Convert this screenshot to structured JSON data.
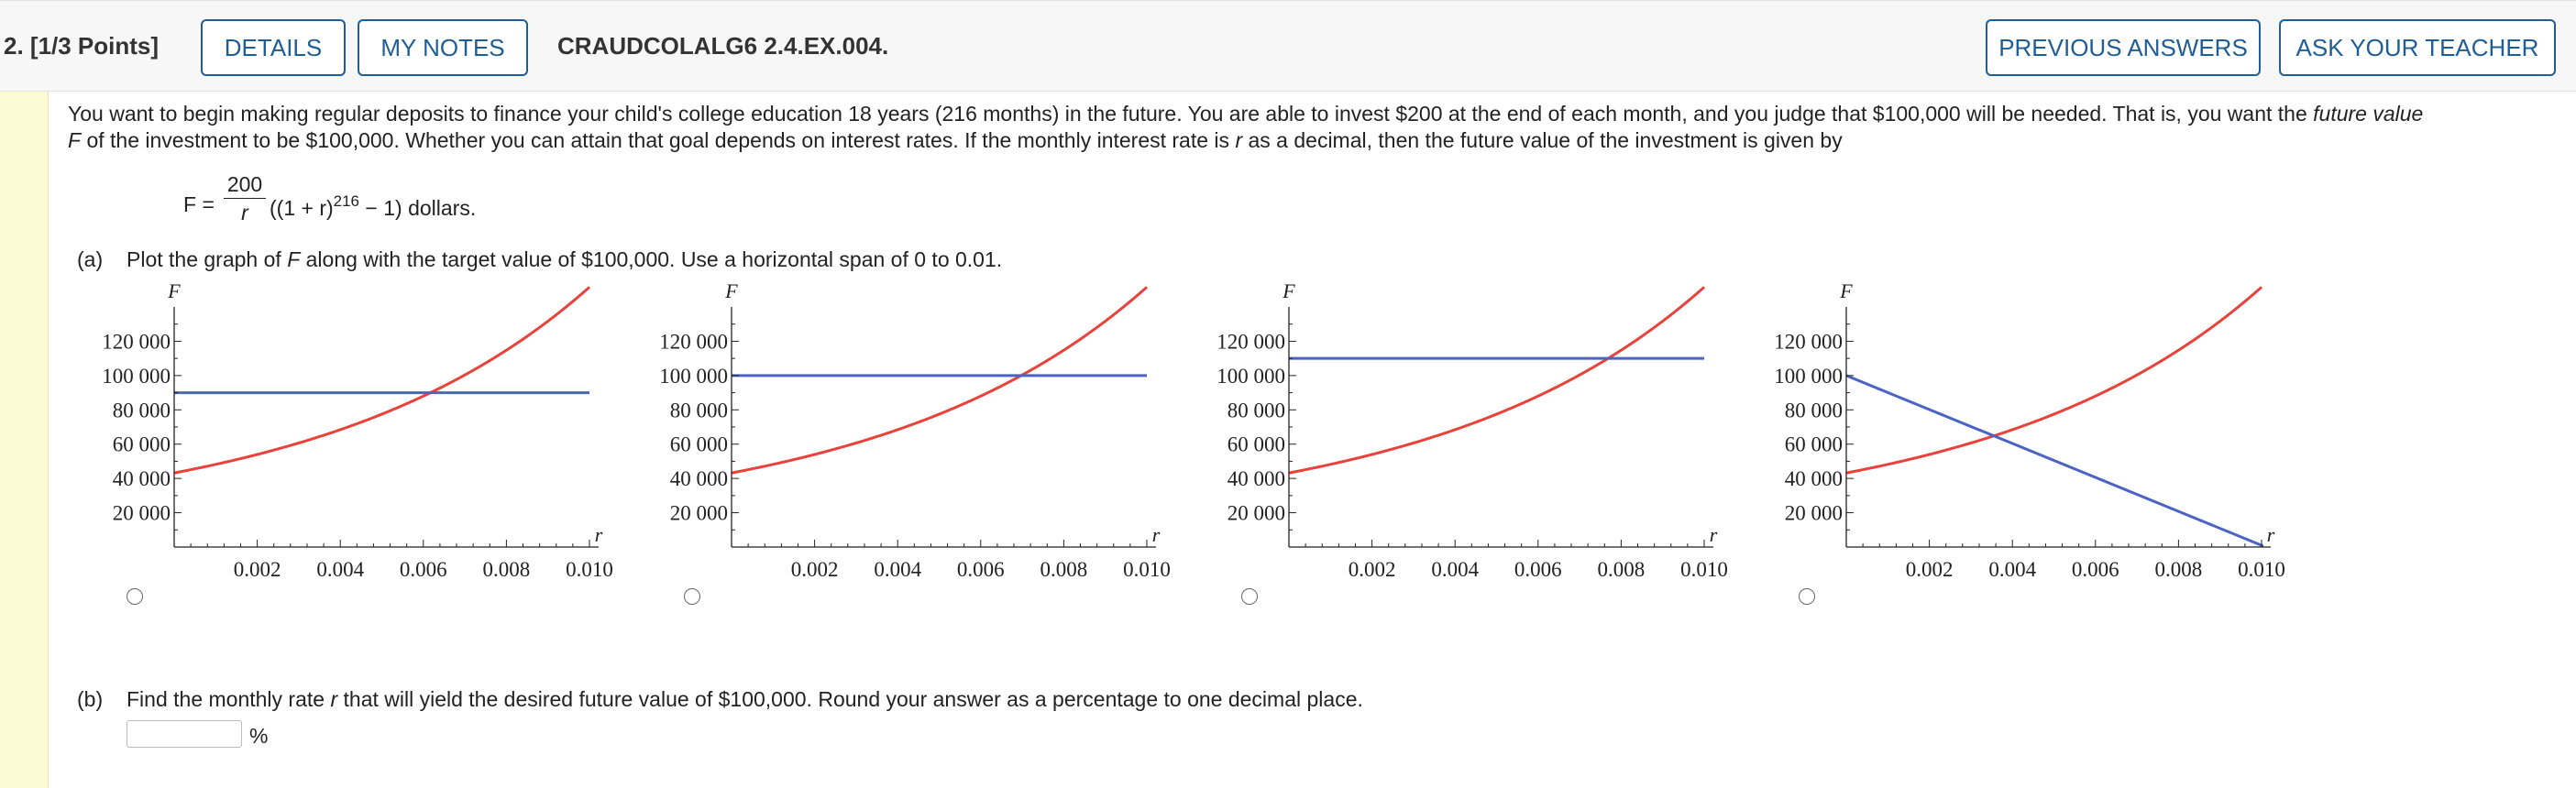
{
  "header": {
    "question_number": "2. [1/3 Points]",
    "details_label": "DETAILS",
    "my_notes_label": "MY NOTES",
    "problem_code": "CRAUDCOLALG6 2.4.EX.004.",
    "previous_answers_label": "PREVIOUS ANSWERS",
    "ask_teacher_label": "ASK YOUR TEACHER"
  },
  "problem": {
    "intro_1": "You want to begin making regular deposits to finance your child's college education 18 years (216 months) in the future. You are able to invest $200 at the end of each month, and you judge that $100,000 will be needed. That is, you want the ",
    "intro_em_1": "future value",
    "intro_em_2": "F",
    "intro_2": " of the investment to be $100,000. Whether you can attain that goal depends on interest rates. If the monthly interest rate is ",
    "intro_em_3": "r",
    "intro_3": " as a decimal, then the future value of the investment is given by",
    "formula_lhs": "F =",
    "formula_num": "200",
    "formula_den": "r",
    "formula_paren": "((1 + r)",
    "formula_exp": "216",
    "formula_tail": " − 1) dollars."
  },
  "part_a": {
    "label": "(a)",
    "text_1": "Plot the graph of ",
    "text_em": "F",
    "text_2": " along with the target value of $100,000. Use a horizontal span of 0 to 0.01."
  },
  "part_b": {
    "label": "(b)",
    "text_1": "Find the monthly rate ",
    "text_em": "r",
    "text_2": " that will yield the desired future value of $100,000. Round your answer as a percentage to one decimal place.",
    "answer_value": "",
    "unit": "%"
  },
  "colors": {
    "curve": "#e8423a",
    "target": "#4a63c4",
    "button": "#1f5d96",
    "sidebar": "#fdfbd5"
  },
  "chart_data": [
    {
      "type": "line",
      "ylabel": "F",
      "xlabel": "r",
      "xlim": [
        0,
        0.01
      ],
      "ylim": [
        0,
        140000
      ],
      "xticks": [
        "0.002",
        "0.004",
        "0.006",
        "0.008",
        "0.010"
      ],
      "yticks": [
        "20 000",
        "40 000",
        "60 000",
        "80 000",
        "100 000",
        "120 000"
      ],
      "series": [
        {
          "kind": "curve",
          "formula": "200/r*((1+r)^216-1)"
        },
        {
          "kind": "line",
          "points": [
            [
              0,
              90000
            ],
            [
              0.01,
              90000
            ]
          ]
        }
      ]
    },
    {
      "type": "line",
      "ylabel": "F",
      "xlabel": "r",
      "xlim": [
        0,
        0.01
      ],
      "ylim": [
        0,
        140000
      ],
      "xticks": [
        "0.002",
        "0.004",
        "0.006",
        "0.008",
        "0.010"
      ],
      "yticks": [
        "20 000",
        "40 000",
        "60 000",
        "80 000",
        "100 000",
        "120 000"
      ],
      "series": [
        {
          "kind": "curve",
          "formula": "200/r*((1+r)^216-1)"
        },
        {
          "kind": "line",
          "points": [
            [
              0,
              100000
            ],
            [
              0.01,
              100000
            ]
          ]
        }
      ]
    },
    {
      "type": "line",
      "ylabel": "F",
      "xlabel": "r",
      "xlim": [
        0,
        0.01
      ],
      "ylim": [
        0,
        140000
      ],
      "xticks": [
        "0.002",
        "0.004",
        "0.006",
        "0.008",
        "0.010"
      ],
      "yticks": [
        "20 000",
        "40 000",
        "60 000",
        "80 000",
        "100 000",
        "120 000"
      ],
      "series": [
        {
          "kind": "curve",
          "formula": "200/r*((1+r)^216-1)"
        },
        {
          "kind": "line",
          "points": [
            [
              0,
              110000
            ],
            [
              0.01,
              110000
            ]
          ]
        }
      ]
    },
    {
      "type": "line",
      "ylabel": "F",
      "xlabel": "r",
      "xlim": [
        0,
        0.01
      ],
      "ylim": [
        0,
        140000
      ],
      "xticks": [
        "0.002",
        "0.004",
        "0.006",
        "0.008",
        "0.010"
      ],
      "yticks": [
        "20 000",
        "40 000",
        "60 000",
        "80 000",
        "100 000",
        "120 000"
      ],
      "series": [
        {
          "kind": "curve",
          "formula": "200/r*((1+r)^216-1)"
        },
        {
          "kind": "line",
          "points": [
            [
              0,
              100000
            ],
            [
              0.0101,
              0
            ]
          ]
        }
      ]
    }
  ]
}
